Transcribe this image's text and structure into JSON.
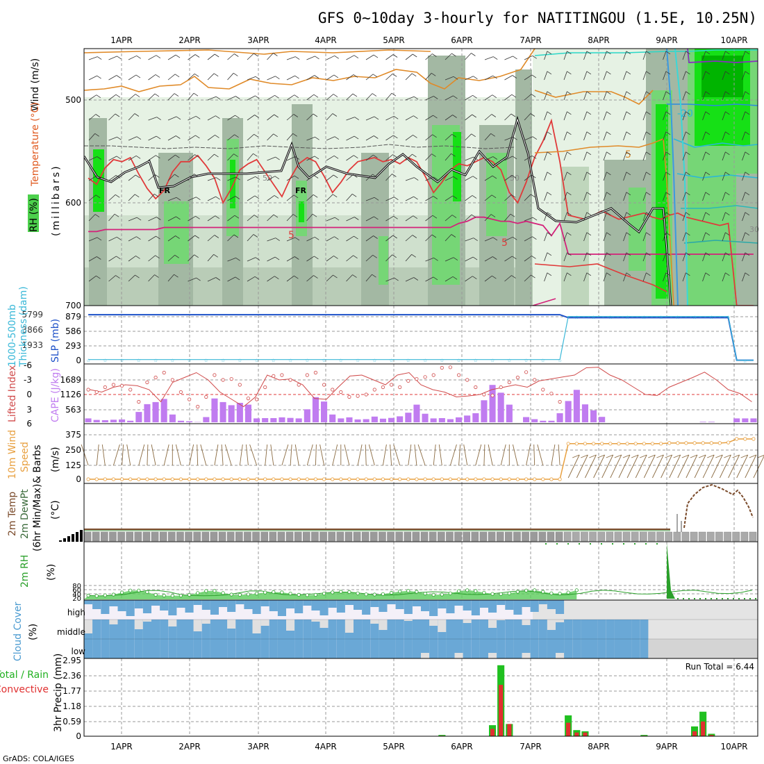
{
  "title": "GFS 0~10day 3-hourly for NATITINGOU (1.5E, 10.25N)",
  "footer": "GrADS: COLA/IGES",
  "day_labels": [
    "1APR",
    "2APR",
    "3APR",
    "4APR",
    "5APR",
    "6APR",
    "7APR",
    "8APR",
    "9APR",
    "10APR"
  ],
  "panel_labels": {
    "upper_wind": "Wind (m/s)",
    "upper_temp": "Temperature (°C)",
    "upper_rh": "RH (%)",
    "upper_pres": "(millibars)",
    "slp": "SLP (mb)",
    "thickness": "Thickness (dam)",
    "thickness_layer": "1000-500mb",
    "lifted": "Lifted Index",
    "cape": "CAPE (J/kg)",
    "wind10": "10m Wind",
    "wind10_speed": "Speed",
    "wind10_barbs": "& Barbs",
    "wind10_unit": "(m/s)",
    "t2m_a": "2m Temp",
    "t2m_b": "2m DewPt",
    "t2m_c": "(6hr Min/Max)",
    "t2m_unit": "(°C)",
    "rh2m": "2m RH",
    "rh2m_unit": "(%)",
    "cloud": "Cloud Cover",
    "cloud_unit": "(%)",
    "cloud_high": "high",
    "cloud_middle": "middle",
    "cloud_low": "low",
    "precip_a": "Total / Rain",
    "precip_b": "Convective",
    "precip_c": "3hr Precip (mm)",
    "run_total": "Run Total = 6.44"
  },
  "contour_labels": [
    "FR",
    "FR",
    "50",
    "50",
    "5",
    "5",
    "5",
    "-20",
    "30"
  ],
  "colors": {
    "rh_light": "#e6f2e4",
    "rh_mid": "#bfd6bc",
    "rh_dark": "#a3b8a3",
    "rh_green": "#76d676",
    "rh_bright": "#16e016",
    "rh_deep": "#00b400",
    "orange": "#e08a28",
    "red": "#e03a3a",
    "magenta": "#d4217a",
    "slp": "#1c50c8",
    "thick": "#3ab8d8",
    "cape": "#c07cf0",
    "lifted": "#d04a4a",
    "wind": "#e8a040",
    "barb": "#8a6a40",
    "tmax": "#7a4a2a",
    "rh2m": "#2aa02a",
    "cloud": "#6aa8d6",
    "cloud_bg": "#e4e4e4",
    "precip_total": "#20c020",
    "precip_conv": "#e03030"
  },
  "chart_data": [
    {
      "type": "heatmap",
      "panel": "upper-air",
      "ylabel": "(millibars)",
      "y_ticks": [
        500,
        600,
        700
      ],
      "ylim": [
        700,
        450
      ],
      "x_ticks": [
        "1APR",
        "2APR",
        "3APR",
        "4APR",
        "5APR",
        "6APR",
        "7APR",
        "8APR",
        "9APR",
        "10APR"
      ],
      "series": [
        {
          "values": [
            -2,
            -3,
            -1,
            -2,
            -2,
            -1,
            -2,
            -1,
            -3,
            -2,
            -1,
            -2,
            -1,
            -2,
            -3,
            -1,
            -2,
            -2,
            -1,
            -3,
            -1,
            -2,
            -2,
            -1,
            -2,
            -3,
            -1,
            -2,
            -1,
            -2,
            -1,
            -2,
            -1,
            -2,
            -3,
            -2,
            -1,
            -2,
            -1,
            -3,
            -2,
            -1,
            -2,
            -1,
            -2,
            -3,
            -2,
            -1,
            -2,
            -1,
            -2,
            -3,
            -1,
            -2,
            -1,
            -2,
            -1,
            -2,
            -3,
            -1,
            -2,
            -1,
            -2,
            -1,
            -2,
            -3,
            -1,
            -2,
            -1,
            -2,
            -1,
            -2,
            -3,
            -1,
            -2,
            -1,
            -2,
            -1,
            -2,
            -3
          ]
        },
        {
          "values": [
            576,
            582,
            566,
            558,
            560,
            556,
            572,
            586,
            596,
            588,
            570,
            560,
            560,
            554,
            564,
            576,
            600,
            586,
            568,
            562,
            558,
            570,
            582,
            594,
            576,
            562,
            556,
            560,
            574,
            590,
            580,
            568,
            560,
            558,
            556,
            560,
            558,
            562,
            556,
            560,
            574,
            590,
            580,
            568,
            562,
            564,
            560,
            556,
            560,
            568,
            590,
            600,
            580,
            556,
            540,
            520,
            560,
            612,
            614,
            616,
            612,
            608,
            612,
            616,
            614,
            612,
            610,
            614,
            616,
            612,
            610,
            614,
            616,
            618,
            620,
            622,
            620,
            700,
            700,
            700
          ]
        },
        {
          "values": [
            628,
            628,
            626,
            626,
            626,
            626,
            626,
            626,
            626,
            624,
            624,
            624,
            624,
            624,
            624,
            624,
            624,
            624,
            624,
            624,
            624,
            624,
            624,
            624,
            624,
            624,
            624,
            624,
            624,
            624,
            624,
            624,
            624,
            624,
            624,
            624,
            624,
            624,
            624,
            624,
            624,
            624,
            624,
            624,
            620,
            618,
            614,
            614,
            616,
            618,
            618,
            620,
            618,
            620,
            622,
            632,
            620,
            650,
            650,
            650,
            650,
            650,
            650,
            650,
            650,
            650,
            650,
            650,
            650,
            650,
            650,
            650,
            650,
            650,
            650,
            650,
            650,
            650,
            650,
            650
          ]
        }
      ]
    },
    {
      "type": "line",
      "panel": "slp-thickness",
      "y_ticks": [
        0,
        293,
        586,
        879
      ],
      "y_ticks_thickness": [
        0,
        1933,
        3866,
        5799
      ],
      "ylim": [
        0,
        950
      ],
      "series": [
        {
          "values": [
            920,
            920,
            920,
            920,
            920,
            920,
            920,
            920,
            920,
            920,
            920,
            920,
            920,
            920,
            920,
            920,
            920,
            920,
            920,
            920,
            920,
            920,
            920,
            920,
            920,
            920,
            920,
            920,
            920,
            920,
            920,
            920,
            920,
            920,
            920,
            920,
            920,
            920,
            920,
            920,
            920,
            920,
            920,
            920,
            920,
            920,
            920,
            920,
            920,
            920,
            920,
            920,
            920,
            920,
            920,
            920,
            920,
            860,
            860,
            860,
            860,
            860,
            860,
            860,
            860,
            860,
            860,
            860,
            860,
            860,
            860,
            860,
            860,
            860,
            860,
            860,
            860,
            5,
            5,
            5
          ]
        },
        {
          "values": [
            18,
            18,
            18,
            18,
            18,
            18,
            18,
            18,
            18,
            18,
            18,
            18,
            18,
            18,
            18,
            18,
            18,
            18,
            18,
            18,
            18,
            18,
            18,
            18,
            18,
            18,
            18,
            18,
            18,
            18,
            18,
            18,
            18,
            18,
            18,
            18,
            18,
            18,
            18,
            18,
            18,
            18,
            18,
            18,
            18,
            18,
            18,
            18,
            18,
            18,
            18,
            18,
            18,
            18,
            18,
            18,
            18,
            885,
            885,
            885,
            885,
            885,
            885,
            885,
            885,
            885,
            885,
            885,
            885,
            885,
            885,
            885,
            885,
            885,
            885,
            885,
            885,
            5,
            5,
            5
          ]
        }
      ]
    },
    {
      "type": "bar",
      "panel": "cape-lifted",
      "y_ticks_cape": [
        563,
        1126,
        1689
      ],
      "y_ticks_lifted": [
        6,
        3,
        0,
        -3,
        -6
      ],
      "ylim": [
        0,
        2250
      ],
      "series": [
        {
          "values": [
            150,
            90,
            80,
            100,
            110,
            60,
            400,
            700,
            780,
            900,
            300,
            60,
            40,
            10,
            200,
            920,
            780,
            660,
            750,
            680,
            150,
            160,
            160,
            190,
            170,
            150,
            500,
            970,
            800,
            300,
            150,
            190,
            110,
            120,
            220,
            140,
            170,
            230,
            370,
            680,
            330,
            150,
            160,
            120,
            190,
            260,
            350,
            850,
            1440,
            1140,
            680,
            0,
            200,
            120,
            60,
            60,
            350,
            820,
            1250,
            690,
            460,
            210,
            0,
            0,
            0,
            0,
            0,
            0,
            0,
            0,
            0,
            0,
            0,
            20,
            20,
            0,
            0,
            150,
            150,
            150
          ]
        },
        {
          "values": [
            -1.0,
            -0.5,
            -1.5,
            -2.0,
            -1.8,
            -1.0,
            1.5,
            -2.5,
            -3.5,
            -4.5,
            -3.0,
            -0.5,
            1.0,
            2.5,
            0.5,
            -4.0,
            -3.0,
            -3.2,
            -2.0,
            0.8,
            1.0,
            -1.5,
            -3.8,
            -4.0,
            -3.0,
            -2.0,
            -4.0,
            -4.5,
            -2.0,
            -1.0,
            -0.5,
            0.5,
            0.3,
            0.0,
            -1.0,
            -1.5,
            -2.0,
            -1.5,
            -2.8,
            -3.2,
            -3.6,
            -4.0,
            -5.5,
            -5.6,
            -4.0,
            -3.0,
            -1.5,
            0.0,
            0.2,
            -1.5,
            -2.5,
            -3.5,
            -4.6,
            -3.0,
            -1.0,
            -0.2,
            1.5,
            0.5,
            0,
            0,
            0,
            0,
            0,
            0,
            0,
            0,
            0,
            0,
            0,
            0,
            0,
            0,
            0,
            0,
            0,
            0,
            0,
            0,
            0,
            0
          ]
        }
      ]
    },
    {
      "type": "line",
      "panel": "wind10",
      "y_ticks": [
        0,
        125,
        250,
        375
      ],
      "ylim": [
        0,
        420
      ],
      "series": [
        {
          "values": [
            0,
            0,
            0,
            0,
            0,
            0,
            0,
            0,
            0,
            0,
            0,
            0,
            0,
            0,
            0,
            0,
            0,
            0,
            0,
            0,
            0,
            0,
            0,
            0,
            0,
            0,
            0,
            0,
            0,
            0,
            0,
            0,
            0,
            0,
            0,
            0,
            0,
            0,
            0,
            0,
            0,
            0,
            0,
            0,
            0,
            0,
            0,
            0,
            0,
            0,
            0,
            0,
            0,
            0,
            0,
            0,
            0,
            300,
            300,
            300,
            300,
            300,
            300,
            300,
            300,
            300,
            300,
            300,
            300,
            305,
            305,
            305,
            305,
            305,
            305,
            305,
            310,
            340,
            340,
            340
          ]
        }
      ]
    },
    {
      "type": "line",
      "panel": "rh2m",
      "y_ticks": [
        20,
        40,
        60,
        80
      ],
      "ylim": [
        0,
        100
      ],
      "series": [
        {
          "values": [
            25,
            23,
            27,
            32,
            45,
            58,
            58,
            48,
            30,
            25,
            24,
            25,
            30,
            42,
            55,
            56,
            42,
            32,
            30,
            33,
            38,
            45,
            48,
            46,
            38,
            30,
            28,
            30,
            38,
            46,
            50,
            48,
            40,
            33,
            32,
            35,
            43,
            52,
            56,
            50,
            38,
            30,
            32,
            40,
            54,
            60,
            55,
            44,
            36,
            35,
            40,
            50,
            58,
            60,
            50,
            40,
            38,
            45,
            60,
            0,
            0,
            0,
            0,
            0,
            0,
            0,
            0,
            0,
            0,
            0,
            0,
            0,
            0,
            0,
            0,
            0,
            0,
            0,
            0,
            0
          ]
        }
      ]
    },
    {
      "type": "bar",
      "panel": "precip",
      "y_ticks": [
        0,
        0.59,
        1.18,
        1.77,
        2.36,
        2.95
      ],
      "ylim": [
        0,
        2.95
      ],
      "run_total": 6.44,
      "series": [
        {
          "values": [
            0,
            0,
            0,
            0,
            0,
            0,
            0,
            0,
            0,
            0,
            0,
            0,
            0,
            0,
            0,
            0,
            0,
            0,
            0,
            0,
            0,
            0,
            0,
            0,
            0,
            0,
            0,
            0,
            0,
            0,
            0,
            0,
            0,
            0,
            0,
            0,
            0,
            0,
            0,
            0,
            0,
            0,
            0.05,
            0,
            0,
            0,
            0,
            0,
            0.45,
            2.9,
            0.5,
            0,
            0,
            0,
            0,
            0,
            0,
            0.85,
            0.25,
            0.2,
            0,
            0,
            0,
            0,
            0,
            0,
            0.05,
            0,
            0,
            0,
            0,
            0,
            0.4,
            1.0,
            0.1,
            0,
            0,
            0,
            0,
            0
          ]
        },
        {
          "values": [
            0,
            0,
            0,
            0,
            0,
            0,
            0,
            0,
            0,
            0,
            0,
            0,
            0,
            0,
            0,
            0,
            0,
            0,
            0,
            0,
            0,
            0,
            0,
            0,
            0,
            0,
            0,
            0,
            0,
            0,
            0,
            0,
            0,
            0,
            0,
            0,
            0,
            0,
            0,
            0,
            0,
            0,
            0.02,
            0,
            0,
            0,
            0,
            0,
            0.3,
            2.1,
            0.5,
            0,
            0,
            0,
            0,
            0,
            0,
            0.55,
            0.15,
            0.15,
            0,
            0,
            0,
            0,
            0,
            0,
            0.02,
            0,
            0,
            0,
            0,
            0,
            0.2,
            0.6,
            0.05,
            0,
            0,
            0,
            0,
            0
          ]
        }
      ]
    }
  ]
}
